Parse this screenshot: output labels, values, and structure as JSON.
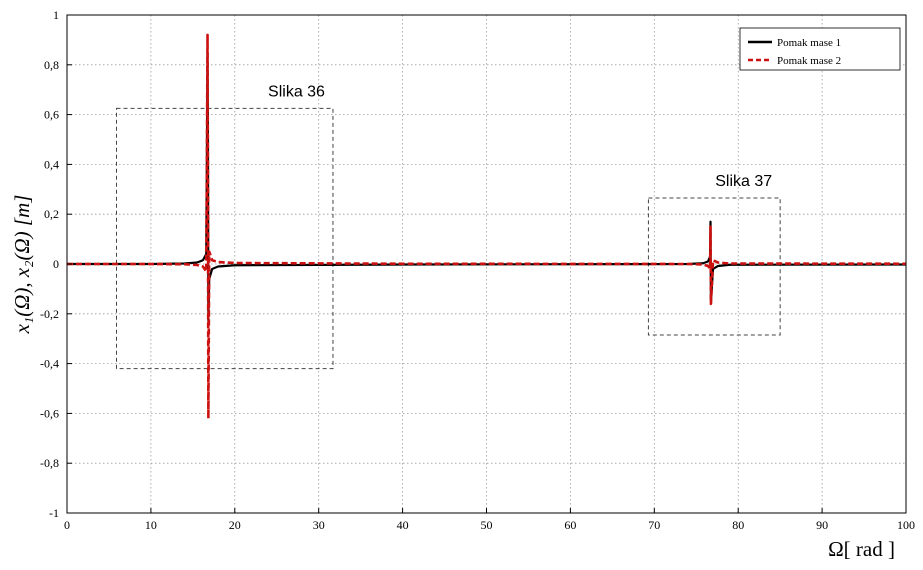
{
  "chart_data": {
    "type": "line",
    "title": "",
    "xlabel": "Ω[ rad ]",
    "ylabel": "x₁(Ω), x₂(Ω)  [m]",
    "xlim": [
      0,
      100
    ],
    "ylim": [
      -1,
      1
    ],
    "grid": true,
    "legend_position": "top-right",
    "x_ticks": [
      "0",
      "10",
      "20",
      "30",
      "40",
      "50",
      "60",
      "70",
      "80",
      "90",
      "100"
    ],
    "y_ticks": [
      "1",
      "0,8",
      "0,6",
      "0,4",
      "0,2",
      "0",
      "-0,2",
      "-0,4",
      "-0,6",
      "-0,8",
      "-1"
    ],
    "series": [
      {
        "name": "Pomak mase 1",
        "color": "#000000",
        "dash": "solid",
        "x": [
          0,
          10,
          14,
          15.5,
          16.2,
          16.6,
          16.75,
          16.8,
          16.85,
          16.95,
          17.3,
          18,
          20,
          40,
          74,
          75.8,
          76.4,
          76.65,
          76.7,
          76.75,
          77,
          77.6,
          79,
          100
        ],
        "y": [
          0,
          0,
          0.002,
          0.006,
          0.015,
          0.04,
          0.85,
          0.5,
          -0.23,
          -0.06,
          -0.02,
          -0.01,
          -0.005,
          -0.002,
          0.0,
          0.003,
          0.01,
          0.03,
          0.17,
          -0.15,
          -0.02,
          -0.008,
          -0.003,
          -0.002
        ]
      },
      {
        "name": "Pomak mase 2",
        "color": "#cc1111",
        "dash": "dashed",
        "x": [
          0,
          10,
          14,
          15.5,
          16.2,
          16.6,
          16.75,
          16.8,
          16.85,
          16.95,
          17.3,
          18,
          20,
          40,
          74,
          75.8,
          76.4,
          76.65,
          76.7,
          76.75,
          77,
          77.6,
          79,
          100
        ],
        "y": [
          0,
          0,
          -0.001,
          -0.004,
          -0.01,
          -0.03,
          0.92,
          0.3,
          -0.62,
          0.05,
          0.015,
          0.008,
          0.004,
          0.001,
          0.0,
          -0.002,
          -0.008,
          -0.02,
          0.15,
          -0.16,
          0.015,
          0.006,
          0.002,
          0.001
        ]
      }
    ],
    "annotations": [
      {
        "label": "Slika 36",
        "box_x": [
          5.9,
          31.7
        ],
        "box_y": [
          -0.42,
          0.625
        ]
      },
      {
        "label": "Slika 37",
        "box_x": [
          69.3,
          85.0
        ],
        "box_y": [
          -0.285,
          0.265
        ]
      }
    ]
  }
}
